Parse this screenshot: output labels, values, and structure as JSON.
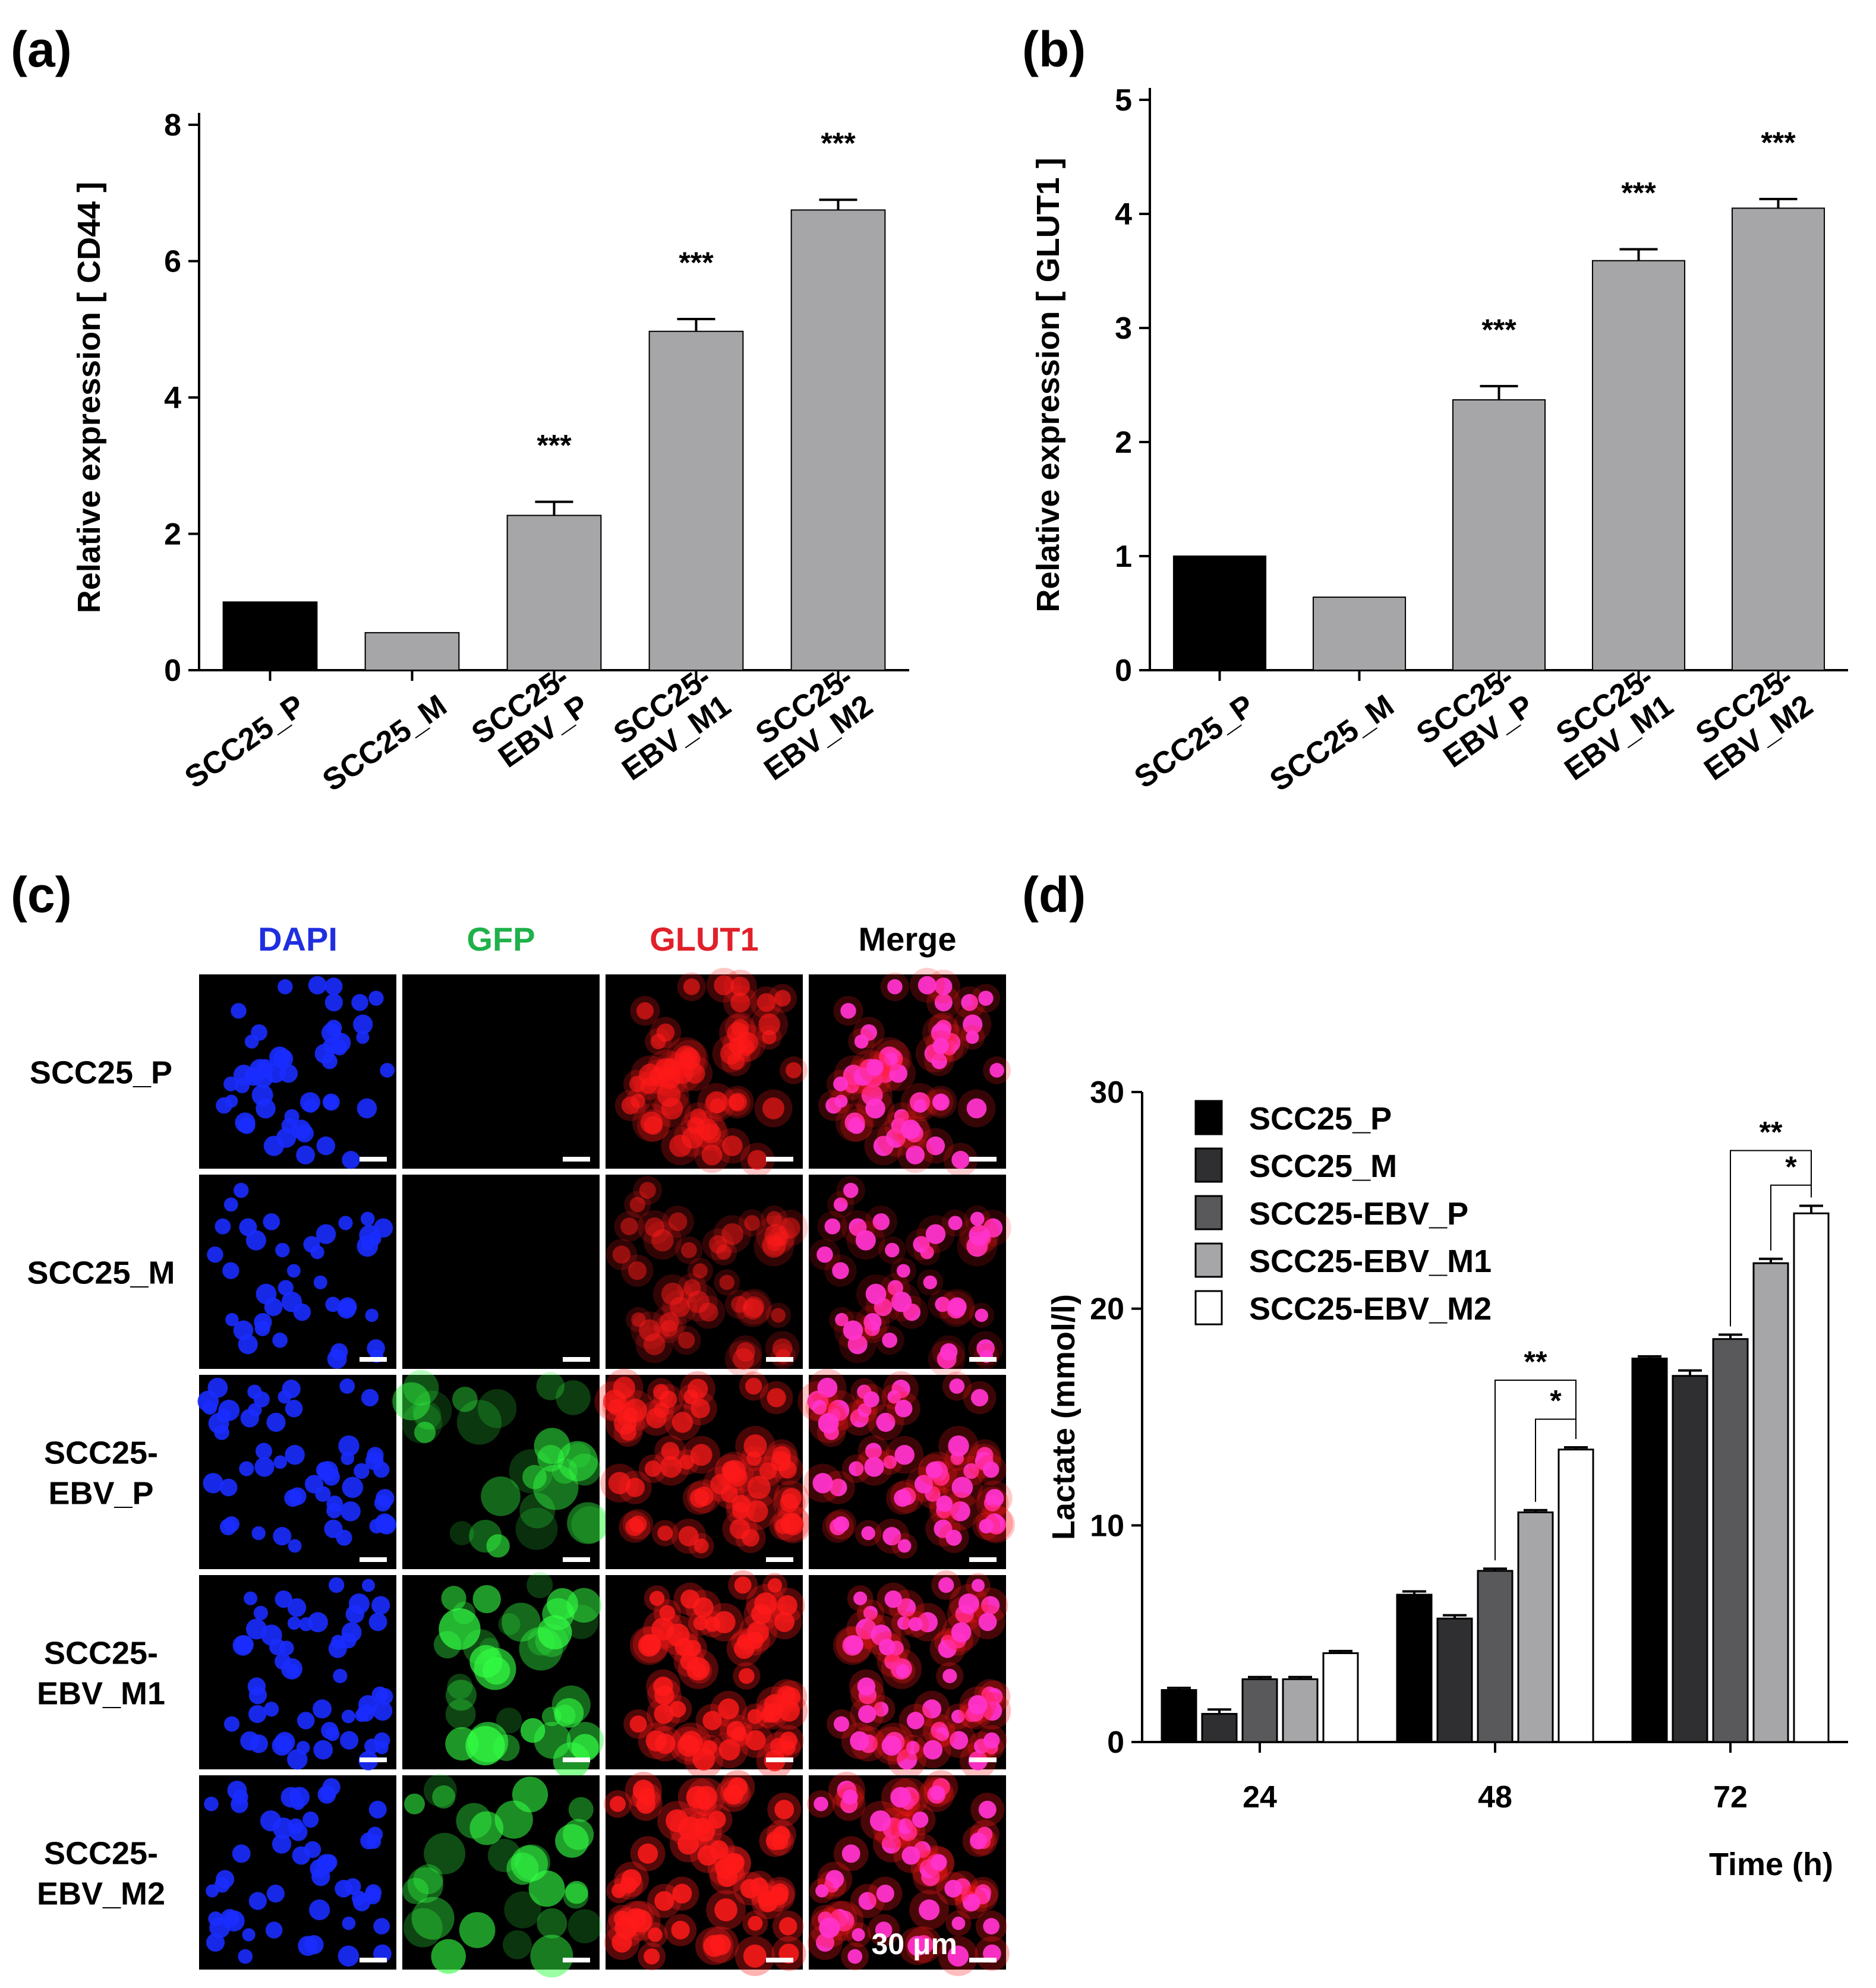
{
  "panels": {
    "a_label": "(a)",
    "b_label": "(b)",
    "c_label": "(c)",
    "d_label": "(d)"
  },
  "microscopy": {
    "channels": [
      {
        "label": "DAPI",
        "color": "#1f2fe0"
      },
      {
        "label": "GFP",
        "color": "#1fb14a"
      },
      {
        "label": "GLUT1",
        "color": "#e0202a"
      },
      {
        "label": "Merge",
        "color": "#000000"
      }
    ],
    "rows": [
      {
        "label_lines": [
          "SCC25_P"
        ],
        "gfp_level": 0.0,
        "glut1_level": 0.7
      },
      {
        "label_lines": [
          "SCC25_M"
        ],
        "gfp_level": 0.0,
        "glut1_level": 0.55
      },
      {
        "label_lines": [
          "SCC25-",
          "EBV_P"
        ],
        "gfp_level": 0.6,
        "glut1_level": 0.8
      },
      {
        "label_lines": [
          "SCC25-",
          "EBV_M1"
        ],
        "gfp_level": 0.75,
        "glut1_level": 0.9
      },
      {
        "label_lines": [
          "SCC25-",
          "EBV_M2"
        ],
        "gfp_level": 0.65,
        "glut1_level": 0.95
      }
    ],
    "scale_bar_text": "30 μm",
    "colors": {
      "dapi": "#1a2cff",
      "gfp": "#33ff44",
      "glut1": "#ff1a1a",
      "merge": "#ff33cc"
    }
  },
  "chart_data": [
    {
      "id": "a",
      "type": "bar",
      "title": "",
      "xlabel": "",
      "ylabel": "Relative expression [ CD44 ]",
      "ylim": [
        0,
        8
      ],
      "yticks": [
        0,
        2,
        4,
        6,
        8
      ],
      "categories": [
        [
          "SCC25_P"
        ],
        [
          "SCC25_M"
        ],
        [
          "SCC25-",
          "EBV_P"
        ],
        [
          "SCC25-",
          "EBV_M1"
        ],
        [
          "SCC25-",
          "EBV_M2"
        ]
      ],
      "values": [
        1.0,
        0.55,
        2.27,
        4.97,
        6.75
      ],
      "errors": [
        0,
        0,
        0.2,
        0.18,
        0.15
      ],
      "significance": [
        "",
        "",
        "***",
        "***",
        "***"
      ],
      "colors": [
        "#000000",
        "#a6a6a8",
        "#a6a6a8",
        "#a6a6a8",
        "#a6a6a8"
      ]
    },
    {
      "id": "b",
      "type": "bar",
      "title": "",
      "xlabel": "",
      "ylabel": "Relative expression [ GLUT1 ]",
      "ylim": [
        0,
        5
      ],
      "yticks": [
        0,
        1,
        2,
        3,
        4,
        5
      ],
      "categories": [
        [
          "SCC25_P"
        ],
        [
          "SCC25_M"
        ],
        [
          "SCC25-",
          "EBV_P"
        ],
        [
          "SCC25-",
          "EBV_M1"
        ],
        [
          "SCC25-",
          "EBV_M2"
        ]
      ],
      "values": [
        1.0,
        0.64,
        2.37,
        3.59,
        4.05
      ],
      "errors": [
        0,
        0,
        0.12,
        0.1,
        0.08
      ],
      "significance": [
        "",
        "",
        "***",
        "***",
        "***"
      ],
      "colors": [
        "#000000",
        "#a6a6a8",
        "#a6a6a8",
        "#a6a6a8",
        "#a6a6a8"
      ]
    },
    {
      "id": "d",
      "type": "bar",
      "title": "",
      "xlabel": "Time (h)",
      "ylabel": "Lactate (mmol/l)",
      "ylim": [
        0,
        30
      ],
      "yticks": [
        0,
        10,
        20,
        30
      ],
      "categories": [
        "24",
        "48",
        "72"
      ],
      "series": [
        {
          "name": "SCC25_P",
          "color": "#000000",
          "values": [
            2.4,
            6.8,
            17.7
          ],
          "errors": [
            0.1,
            0.15,
            0.1
          ]
        },
        {
          "name": "SCC25_M",
          "color": "#2f2f31",
          "values": [
            1.3,
            5.7,
            16.9
          ],
          "errors": [
            0.2,
            0.15,
            0.25
          ]
        },
        {
          "name": "SCC25-EBV_P",
          "color": "#59595c",
          "values": [
            2.9,
            7.9,
            18.6
          ],
          "errors": [
            0.1,
            0.1,
            0.2
          ]
        },
        {
          "name": "SCC25-EBV_M1",
          "color": "#a6a6a8",
          "values": [
            2.9,
            10.6,
            22.1
          ],
          "errors": [
            0.1,
            0.1,
            0.2
          ]
        },
        {
          "name": "SCC25-EBV_M2",
          "color": "#ffffff",
          "values": [
            4.1,
            13.5,
            24.4
          ],
          "errors": [
            0.1,
            0.1,
            0.35
          ]
        }
      ],
      "comparisons": [
        {
          "group": 1,
          "from_series": 2,
          "to_series": 4,
          "label": "**",
          "level": 16.7
        },
        {
          "group": 1,
          "from_series": 3,
          "to_series": 4,
          "label": "*",
          "level": 14.9
        },
        {
          "group": 2,
          "from_series": 2,
          "to_series": 4,
          "label": "**",
          "level": 27.3
        },
        {
          "group": 2,
          "from_series": 3,
          "to_series": 4,
          "label": "*",
          "level": 25.7
        }
      ],
      "legend_position": "top-left"
    }
  ]
}
